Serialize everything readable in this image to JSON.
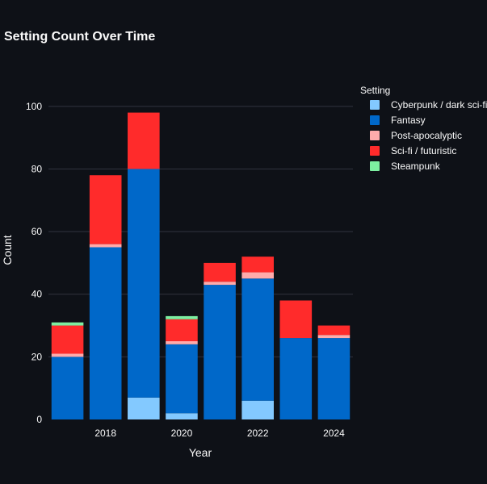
{
  "chart_data": {
    "type": "bar",
    "stacked": true,
    "title": "Setting Count Over Time",
    "xlabel": "Year",
    "ylabel": "Count",
    "x": [
      2017,
      2018,
      2019,
      2020,
      2021,
      2022,
      2023,
      2024
    ],
    "x_tick_labels": [
      "2018",
      "2020",
      "2022",
      "2024"
    ],
    "x_tick_values": [
      2018,
      2020,
      2022,
      2024
    ],
    "ylim": [
      0,
      110
    ],
    "y_ticks": [
      0,
      20,
      40,
      60,
      80,
      100
    ],
    "y_tick_labels": [
      "0",
      "20",
      "40",
      "60",
      "80",
      "100"
    ],
    "grid": true,
    "legend_title": "Setting",
    "legend_position": "right",
    "series": [
      {
        "name": "Cyberpunk / dark sci-fi",
        "color": "#83c9ff",
        "values": [
          0,
          0,
          7,
          2,
          0,
          6,
          0,
          0
        ]
      },
      {
        "name": "Fantasy",
        "color": "#0068c9",
        "values": [
          20,
          55,
          73,
          22,
          43,
          39,
          26,
          26
        ]
      },
      {
        "name": "Post-apocalyptic",
        "color": "#ffabab",
        "values": [
          1,
          1,
          0,
          1,
          1,
          2,
          0,
          1
        ]
      },
      {
        "name": "Sci-fi / futuristic",
        "color": "#ff2b2b",
        "values": [
          9,
          22,
          18,
          7,
          6,
          5,
          12,
          3
        ]
      },
      {
        "name": "Steampunk",
        "color": "#7defa1",
        "values": [
          1,
          0,
          0,
          1,
          0,
          0,
          0,
          0
        ]
      }
    ]
  }
}
